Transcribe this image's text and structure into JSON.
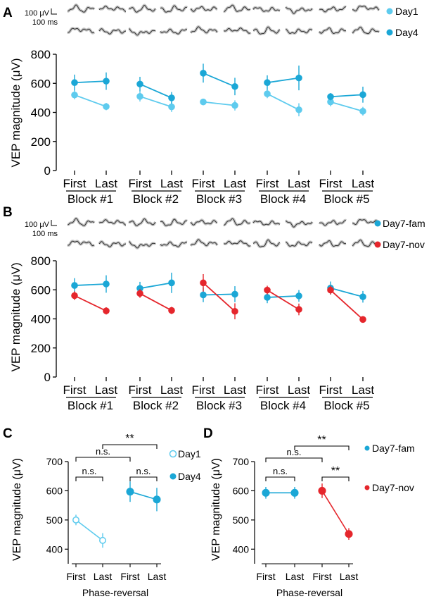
{
  "colors": {
    "day1": "#5ecbee",
    "day4": "#1ba7d6",
    "fam": "#1ba7d6",
    "nov": "#e5262c",
    "trace": "#333333",
    "trace_band": "#c4c4c4",
    "axis": "#000000"
  },
  "scale_bar": {
    "voltage": "100 μV",
    "time": "100 ms"
  },
  "panels": {
    "A": {
      "letter": "A",
      "ylabel": "VEP magnitude (μV)",
      "yticks": [
        "0",
        "200",
        "400",
        "600",
        "800"
      ],
      "xticks": [
        "First",
        "Last"
      ],
      "blocks": [
        "Block #1",
        "Block #2",
        "Block #3",
        "Block #4",
        "Block #5"
      ],
      "legend": [
        {
          "name": "Day1"
        },
        {
          "name": "Day4"
        }
      ]
    },
    "B": {
      "letter": "B",
      "ylabel": "VEP magnitude (μV)",
      "yticks": [
        "0",
        "200",
        "400",
        "600",
        "800"
      ],
      "xticks": [
        "First",
        "Last"
      ],
      "blocks": [
        "Block #1",
        "Block #2",
        "Block #3",
        "Block #4",
        "Block #5"
      ],
      "legend": [
        {
          "name": "Day7-fam"
        },
        {
          "name": "Day7-nov"
        }
      ]
    },
    "C": {
      "letter": "C",
      "ylabel": "VEP magnitude (μV)",
      "yticks": [
        "400",
        "500",
        "600",
        "700"
      ],
      "xticks": [
        "First",
        "Last",
        "First",
        "Last"
      ],
      "xlabel": "Phase-reversal",
      "legend": [
        {
          "name": "Day1"
        },
        {
          "name": "Day4"
        }
      ],
      "sig": [
        "**",
        "n.s.",
        "n.s.",
        "n.s."
      ]
    },
    "D": {
      "letter": "D",
      "ylabel": "VEP magnitude (μV)",
      "yticks": [
        "400",
        "500",
        "600",
        "700"
      ],
      "xticks": [
        "First",
        "Last",
        "First",
        "Last"
      ],
      "xlabel": "Phase-reversal",
      "legend": [
        {
          "name": "Day7-fam"
        },
        {
          "name": "Day7-nov"
        }
      ],
      "sig": [
        "**",
        "n.s.",
        "n.s.",
        "**"
      ]
    }
  },
  "chart_data": [
    {
      "panel": "A",
      "type": "line",
      "title": "",
      "xlabel": "",
      "ylabel": "VEP magnitude (μV)",
      "ylim": [
        0,
        800
      ],
      "categories": [
        "First",
        "Last"
      ],
      "groups": [
        "Block #1",
        "Block #2",
        "Block #3",
        "Block #4",
        "Block #5"
      ],
      "series": [
        {
          "name": "Day1",
          "color": "#5ecbee",
          "values": [
            [
              520,
              440
            ],
            [
              510,
              438
            ],
            [
              472,
              448
            ],
            [
              528,
              418
            ],
            [
              472,
              408
            ]
          ],
          "errors": [
            [
              30,
              25
            ],
            [
              35,
              35
            ],
            [
              15,
              35
            ],
            [
              30,
              45
            ],
            [
              30,
              30
            ]
          ]
        },
        {
          "name": "Day4",
          "color": "#1ba7d6",
          "values": [
            [
              605,
              615
            ],
            [
              595,
              500
            ],
            [
              670,
              578
            ],
            [
              605,
              637
            ],
            [
              508,
              522
            ]
          ],
          "errors": [
            [
              55,
              60
            ],
            [
              50,
              40
            ],
            [
              65,
              60
            ],
            [
              50,
              85
            ],
            [
              25,
              55
            ]
          ]
        }
      ]
    },
    {
      "panel": "B",
      "type": "line",
      "title": "",
      "xlabel": "",
      "ylabel": "VEP magnitude (μV)",
      "ylim": [
        0,
        800
      ],
      "categories": [
        "First",
        "Last"
      ],
      "groups": [
        "Block #1",
        "Block #2",
        "Block #3",
        "Block #4",
        "Block #5"
      ],
      "series": [
        {
          "name": "Day7-fam",
          "color": "#1ba7d6",
          "values": [
            [
              630,
              640
            ],
            [
              610,
              648
            ],
            [
              565,
              570
            ],
            [
              548,
              558
            ],
            [
              612,
              552
            ]
          ],
          "errors": [
            [
              50,
              60
            ],
            [
              45,
              70
            ],
            [
              50,
              55
            ],
            [
              40,
              40
            ],
            [
              45,
              40
            ]
          ]
        },
        {
          "name": "Day7-nov",
          "color": "#e5262c",
          "values": [
            [
              560,
              455
            ],
            [
              575,
              458
            ],
            [
              648,
              452
            ],
            [
              598,
              465
            ],
            [
              598,
              396
            ]
          ],
          "errors": [
            [
              30,
              25
            ],
            [
              30,
              25
            ],
            [
              60,
              55
            ],
            [
              30,
              40
            ],
            [
              30,
              15
            ]
          ]
        }
      ]
    },
    {
      "panel": "C",
      "type": "line",
      "title": "",
      "xlabel": "Phase-reversal",
      "ylabel": "VEP magnitude (μV)",
      "ylim": [
        350,
        700
      ],
      "categories": [
        "First",
        "Last",
        "First",
        "Last"
      ],
      "series": [
        {
          "name": "Day1",
          "color": "#5ecbee",
          "x": [
            0,
            1
          ],
          "values": [
            500,
            430
          ],
          "errors": [
            18,
            25
          ]
        },
        {
          "name": "Day4",
          "color": "#1ba7d6",
          "x": [
            2,
            3
          ],
          "values": [
            597,
            570
          ],
          "errors": [
            35,
            40
          ]
        }
      ],
      "comparisons": [
        {
          "from": 1,
          "to": 3,
          "label": "**"
        },
        {
          "from": 0,
          "to": 2,
          "label": "n.s."
        },
        {
          "from": 0,
          "to": 1,
          "label": "n.s."
        },
        {
          "from": 2,
          "to": 3,
          "label": "n.s."
        }
      ]
    },
    {
      "panel": "D",
      "type": "line",
      "title": "",
      "xlabel": "Phase-reversal",
      "ylabel": "VEP magnitude (μV)",
      "ylim": [
        350,
        700
      ],
      "categories": [
        "First",
        "Last",
        "First",
        "Last"
      ],
      "series": [
        {
          "name": "Day7-fam",
          "color": "#1ba7d6",
          "x": [
            0,
            1
          ],
          "values": [
            593,
            593
          ],
          "errors": [
            20,
            20
          ]
        },
        {
          "name": "Day7-nov",
          "color": "#e5262c",
          "x": [
            2,
            3
          ],
          "values": [
            600,
            452
          ],
          "errors": [
            25,
            20
          ]
        }
      ],
      "comparisons": [
        {
          "from": 1,
          "to": 3,
          "label": "**"
        },
        {
          "from": 0,
          "to": 2,
          "label": "n.s."
        },
        {
          "from": 0,
          "to": 1,
          "label": "n.s."
        },
        {
          "from": 2,
          "to": 3,
          "label": "**"
        }
      ]
    }
  ]
}
